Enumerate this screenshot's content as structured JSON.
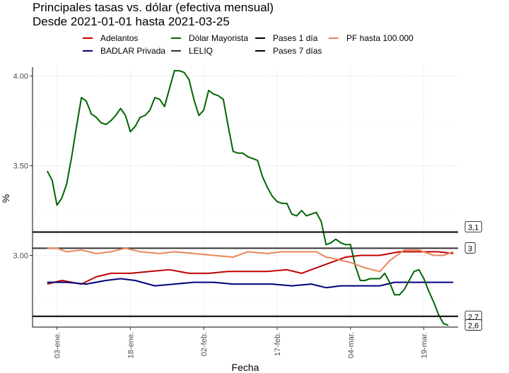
{
  "chart_data": {
    "type": "line",
    "title": "Principales tasas vs. dólar (efectiva mensual)",
    "subtitle": "Desde 2021-01-01 hasta 2021-03-25",
    "xlabel": "Fecha",
    "ylabel": "%",
    "x_range": [
      "2020-12-29",
      "2021-03-26"
    ],
    "ylim": [
      2.6,
      4.05
    ],
    "y_ticks": [
      3.0,
      3.5,
      4.0
    ],
    "y_tick_labels": [
      "3.00",
      "3.50",
      "4.00"
    ],
    "x_ticks": [
      "2021-01-03",
      "2021-01-18",
      "2021-02-02",
      "2021-02-17",
      "2021-03-04",
      "2021-03-19"
    ],
    "x_tick_labels": [
      "03-ene.",
      "18-ene.",
      "02-feb.",
      "17-feb.",
      "04-mar.",
      "19-mar."
    ],
    "grid": "dotted",
    "legend_position": "top",
    "series": [
      {
        "name": "Adelantos",
        "color": "#c00000",
        "points": [
          [
            "2021-01-01",
            2.84
          ],
          [
            "2021-01-04",
            2.86
          ],
          [
            "2021-01-08",
            2.84
          ],
          [
            "2021-01-11",
            2.88
          ],
          [
            "2021-01-14",
            2.9
          ],
          [
            "2021-01-18",
            2.9
          ],
          [
            "2021-01-22",
            2.91
          ],
          [
            "2021-01-26",
            2.92
          ],
          [
            "2021-01-30",
            2.9
          ],
          [
            "2021-02-03",
            2.9
          ],
          [
            "2021-02-07",
            2.91
          ],
          [
            "2021-02-11",
            2.91
          ],
          [
            "2021-02-15",
            2.91
          ],
          [
            "2021-02-19",
            2.92
          ],
          [
            "2021-02-22",
            2.9
          ],
          [
            "2021-02-25",
            2.93
          ],
          [
            "2021-03-01",
            2.97
          ],
          [
            "2021-03-03",
            2.99
          ],
          [
            "2021-03-06",
            3.0
          ],
          [
            "2021-03-10",
            3.0
          ],
          [
            "2021-03-14",
            3.02
          ],
          [
            "2021-03-18",
            3.02
          ],
          [
            "2021-03-22",
            3.02
          ],
          [
            "2021-03-25",
            3.01
          ]
        ]
      },
      {
        "name": "BADLAR Privada",
        "color": "#00007a",
        "points": [
          [
            "2021-01-01",
            2.85
          ],
          [
            "2021-01-05",
            2.85
          ],
          [
            "2021-01-09",
            2.84
          ],
          [
            "2021-01-13",
            2.86
          ],
          [
            "2021-01-16",
            2.87
          ],
          [
            "2021-01-19",
            2.86
          ],
          [
            "2021-01-23",
            2.83
          ],
          [
            "2021-01-27",
            2.84
          ],
          [
            "2021-01-31",
            2.85
          ],
          [
            "2021-02-04",
            2.85
          ],
          [
            "2021-02-08",
            2.84
          ],
          [
            "2021-02-12",
            2.84
          ],
          [
            "2021-02-16",
            2.84
          ],
          [
            "2021-02-20",
            2.83
          ],
          [
            "2021-02-24",
            2.84
          ],
          [
            "2021-02-27",
            2.82
          ],
          [
            "2021-03-02",
            2.83
          ],
          [
            "2021-03-06",
            2.83
          ],
          [
            "2021-03-10",
            2.83
          ],
          [
            "2021-03-13",
            2.85
          ],
          [
            "2021-03-17",
            2.85
          ],
          [
            "2021-03-21",
            2.85
          ],
          [
            "2021-03-25",
            2.85
          ]
        ]
      },
      {
        "name": "Dólar Mayorista",
        "color": "#006400",
        "points": [
          [
            "2021-01-01",
            3.47
          ],
          [
            "2021-01-02",
            3.42
          ],
          [
            "2021-01-03",
            3.28
          ],
          [
            "2021-01-04",
            3.32
          ],
          [
            "2021-01-05",
            3.4
          ],
          [
            "2021-01-06",
            3.55
          ],
          [
            "2021-01-07",
            3.72
          ],
          [
            "2021-01-08",
            3.88
          ],
          [
            "2021-01-09",
            3.86
          ],
          [
            "2021-01-10",
            3.79
          ],
          [
            "2021-01-11",
            3.77
          ],
          [
            "2021-01-12",
            3.74
          ],
          [
            "2021-01-13",
            3.73
          ],
          [
            "2021-01-14",
            3.75
          ],
          [
            "2021-01-15",
            3.78
          ],
          [
            "2021-01-16",
            3.82
          ],
          [
            "2021-01-17",
            3.78
          ],
          [
            "2021-01-18",
            3.69
          ],
          [
            "2021-01-19",
            3.72
          ],
          [
            "2021-01-20",
            3.77
          ],
          [
            "2021-01-21",
            3.78
          ],
          [
            "2021-01-22",
            3.81
          ],
          [
            "2021-01-23",
            3.88
          ],
          [
            "2021-01-24",
            3.87
          ],
          [
            "2021-01-25",
            3.83
          ],
          [
            "2021-01-26",
            3.93
          ],
          [
            "2021-01-27",
            4.03
          ],
          [
            "2021-01-28",
            4.03
          ],
          [
            "2021-01-29",
            4.02
          ],
          [
            "2021-01-30",
            3.98
          ],
          [
            "2021-01-31",
            3.87
          ],
          [
            "2021-02-01",
            3.78
          ],
          [
            "2021-02-02",
            3.81
          ],
          [
            "2021-02-03",
            3.92
          ],
          [
            "2021-02-04",
            3.9
          ],
          [
            "2021-02-05",
            3.89
          ],
          [
            "2021-02-06",
            3.87
          ],
          [
            "2021-02-07",
            3.72
          ],
          [
            "2021-02-08",
            3.58
          ],
          [
            "2021-02-09",
            3.57
          ],
          [
            "2021-02-10",
            3.57
          ],
          [
            "2021-02-11",
            3.55
          ],
          [
            "2021-02-12",
            3.54
          ],
          [
            "2021-02-13",
            3.53
          ],
          [
            "2021-02-14",
            3.44
          ],
          [
            "2021-02-15",
            3.38
          ],
          [
            "2021-02-16",
            3.33
          ],
          [
            "2021-02-17",
            3.3
          ],
          [
            "2021-02-18",
            3.29
          ],
          [
            "2021-02-19",
            3.29
          ],
          [
            "2021-02-20",
            3.23
          ],
          [
            "2021-02-21",
            3.22
          ],
          [
            "2021-02-22",
            3.25
          ],
          [
            "2021-02-23",
            3.22
          ],
          [
            "2021-02-24",
            3.23
          ],
          [
            "2021-02-25",
            3.24
          ],
          [
            "2021-02-26",
            3.19
          ],
          [
            "2021-02-27",
            3.06
          ],
          [
            "2021-02-28",
            3.07
          ],
          [
            "2021-03-01",
            3.09
          ],
          [
            "2021-03-02",
            3.07
          ],
          [
            "2021-03-03",
            3.06
          ],
          [
            "2021-03-04",
            3.06
          ],
          [
            "2021-03-05",
            2.94
          ],
          [
            "2021-03-06",
            2.86
          ],
          [
            "2021-03-07",
            2.86
          ],
          [
            "2021-03-08",
            2.87
          ],
          [
            "2021-03-09",
            2.87
          ],
          [
            "2021-03-10",
            2.87
          ],
          [
            "2021-03-11",
            2.9
          ],
          [
            "2021-03-12",
            2.85
          ],
          [
            "2021-03-13",
            2.78
          ],
          [
            "2021-03-14",
            2.78
          ],
          [
            "2021-03-15",
            2.81
          ],
          [
            "2021-03-16",
            2.86
          ],
          [
            "2021-03-17",
            2.91
          ],
          [
            "2021-03-18",
            2.92
          ],
          [
            "2021-03-19",
            2.87
          ],
          [
            "2021-03-20",
            2.8
          ],
          [
            "2021-03-21",
            2.74
          ],
          [
            "2021-03-22",
            2.67
          ],
          [
            "2021-03-23",
            2.62
          ],
          [
            "2021-03-24",
            2.61
          ]
        ]
      },
      {
        "name": "LELIQ",
        "color": "#333333",
        "constant": 3.04,
        "end_label": "3"
      },
      {
        "name": "Pases 1 día",
        "color": "#000000",
        "constant": 3.13,
        "end_label": "3,1"
      },
      {
        "name": "Pases 7 días",
        "color": "#000000",
        "constant": 2.66,
        "end_label": "2,7"
      },
      {
        "name": "PF hasta 100.000",
        "color": "#e9865a",
        "points": [
          [
            "2021-01-01",
            3.04
          ],
          [
            "2021-01-03",
            3.04
          ],
          [
            "2021-01-05",
            3.02
          ],
          [
            "2021-01-08",
            3.03
          ],
          [
            "2021-01-11",
            3.01
          ],
          [
            "2021-01-14",
            3.02
          ],
          [
            "2021-01-17",
            3.04
          ],
          [
            "2021-01-20",
            3.02
          ],
          [
            "2021-01-24",
            3.01
          ],
          [
            "2021-01-27",
            3.02
          ],
          [
            "2021-01-31",
            3.01
          ],
          [
            "2021-02-04",
            3.0
          ],
          [
            "2021-02-08",
            2.99
          ],
          [
            "2021-02-11",
            3.02
          ],
          [
            "2021-02-15",
            3.01
          ],
          [
            "2021-02-18",
            3.02
          ],
          [
            "2021-02-22",
            3.02
          ],
          [
            "2021-02-25",
            3.02
          ],
          [
            "2021-02-27",
            2.99
          ],
          [
            "2021-03-01",
            2.98
          ],
          [
            "2021-03-04",
            2.96
          ],
          [
            "2021-03-07",
            2.93
          ],
          [
            "2021-03-10",
            2.91
          ],
          [
            "2021-03-12",
            2.97
          ],
          [
            "2021-03-15",
            3.03
          ],
          [
            "2021-03-18",
            3.03
          ],
          [
            "2021-03-21",
            3.0
          ],
          [
            "2021-03-23",
            3.0
          ],
          [
            "2021-03-25",
            3.02
          ]
        ]
      }
    ],
    "annotations": [
      {
        "series": "Dólar Mayorista",
        "text": "2,6",
        "y": 2.61
      }
    ]
  }
}
